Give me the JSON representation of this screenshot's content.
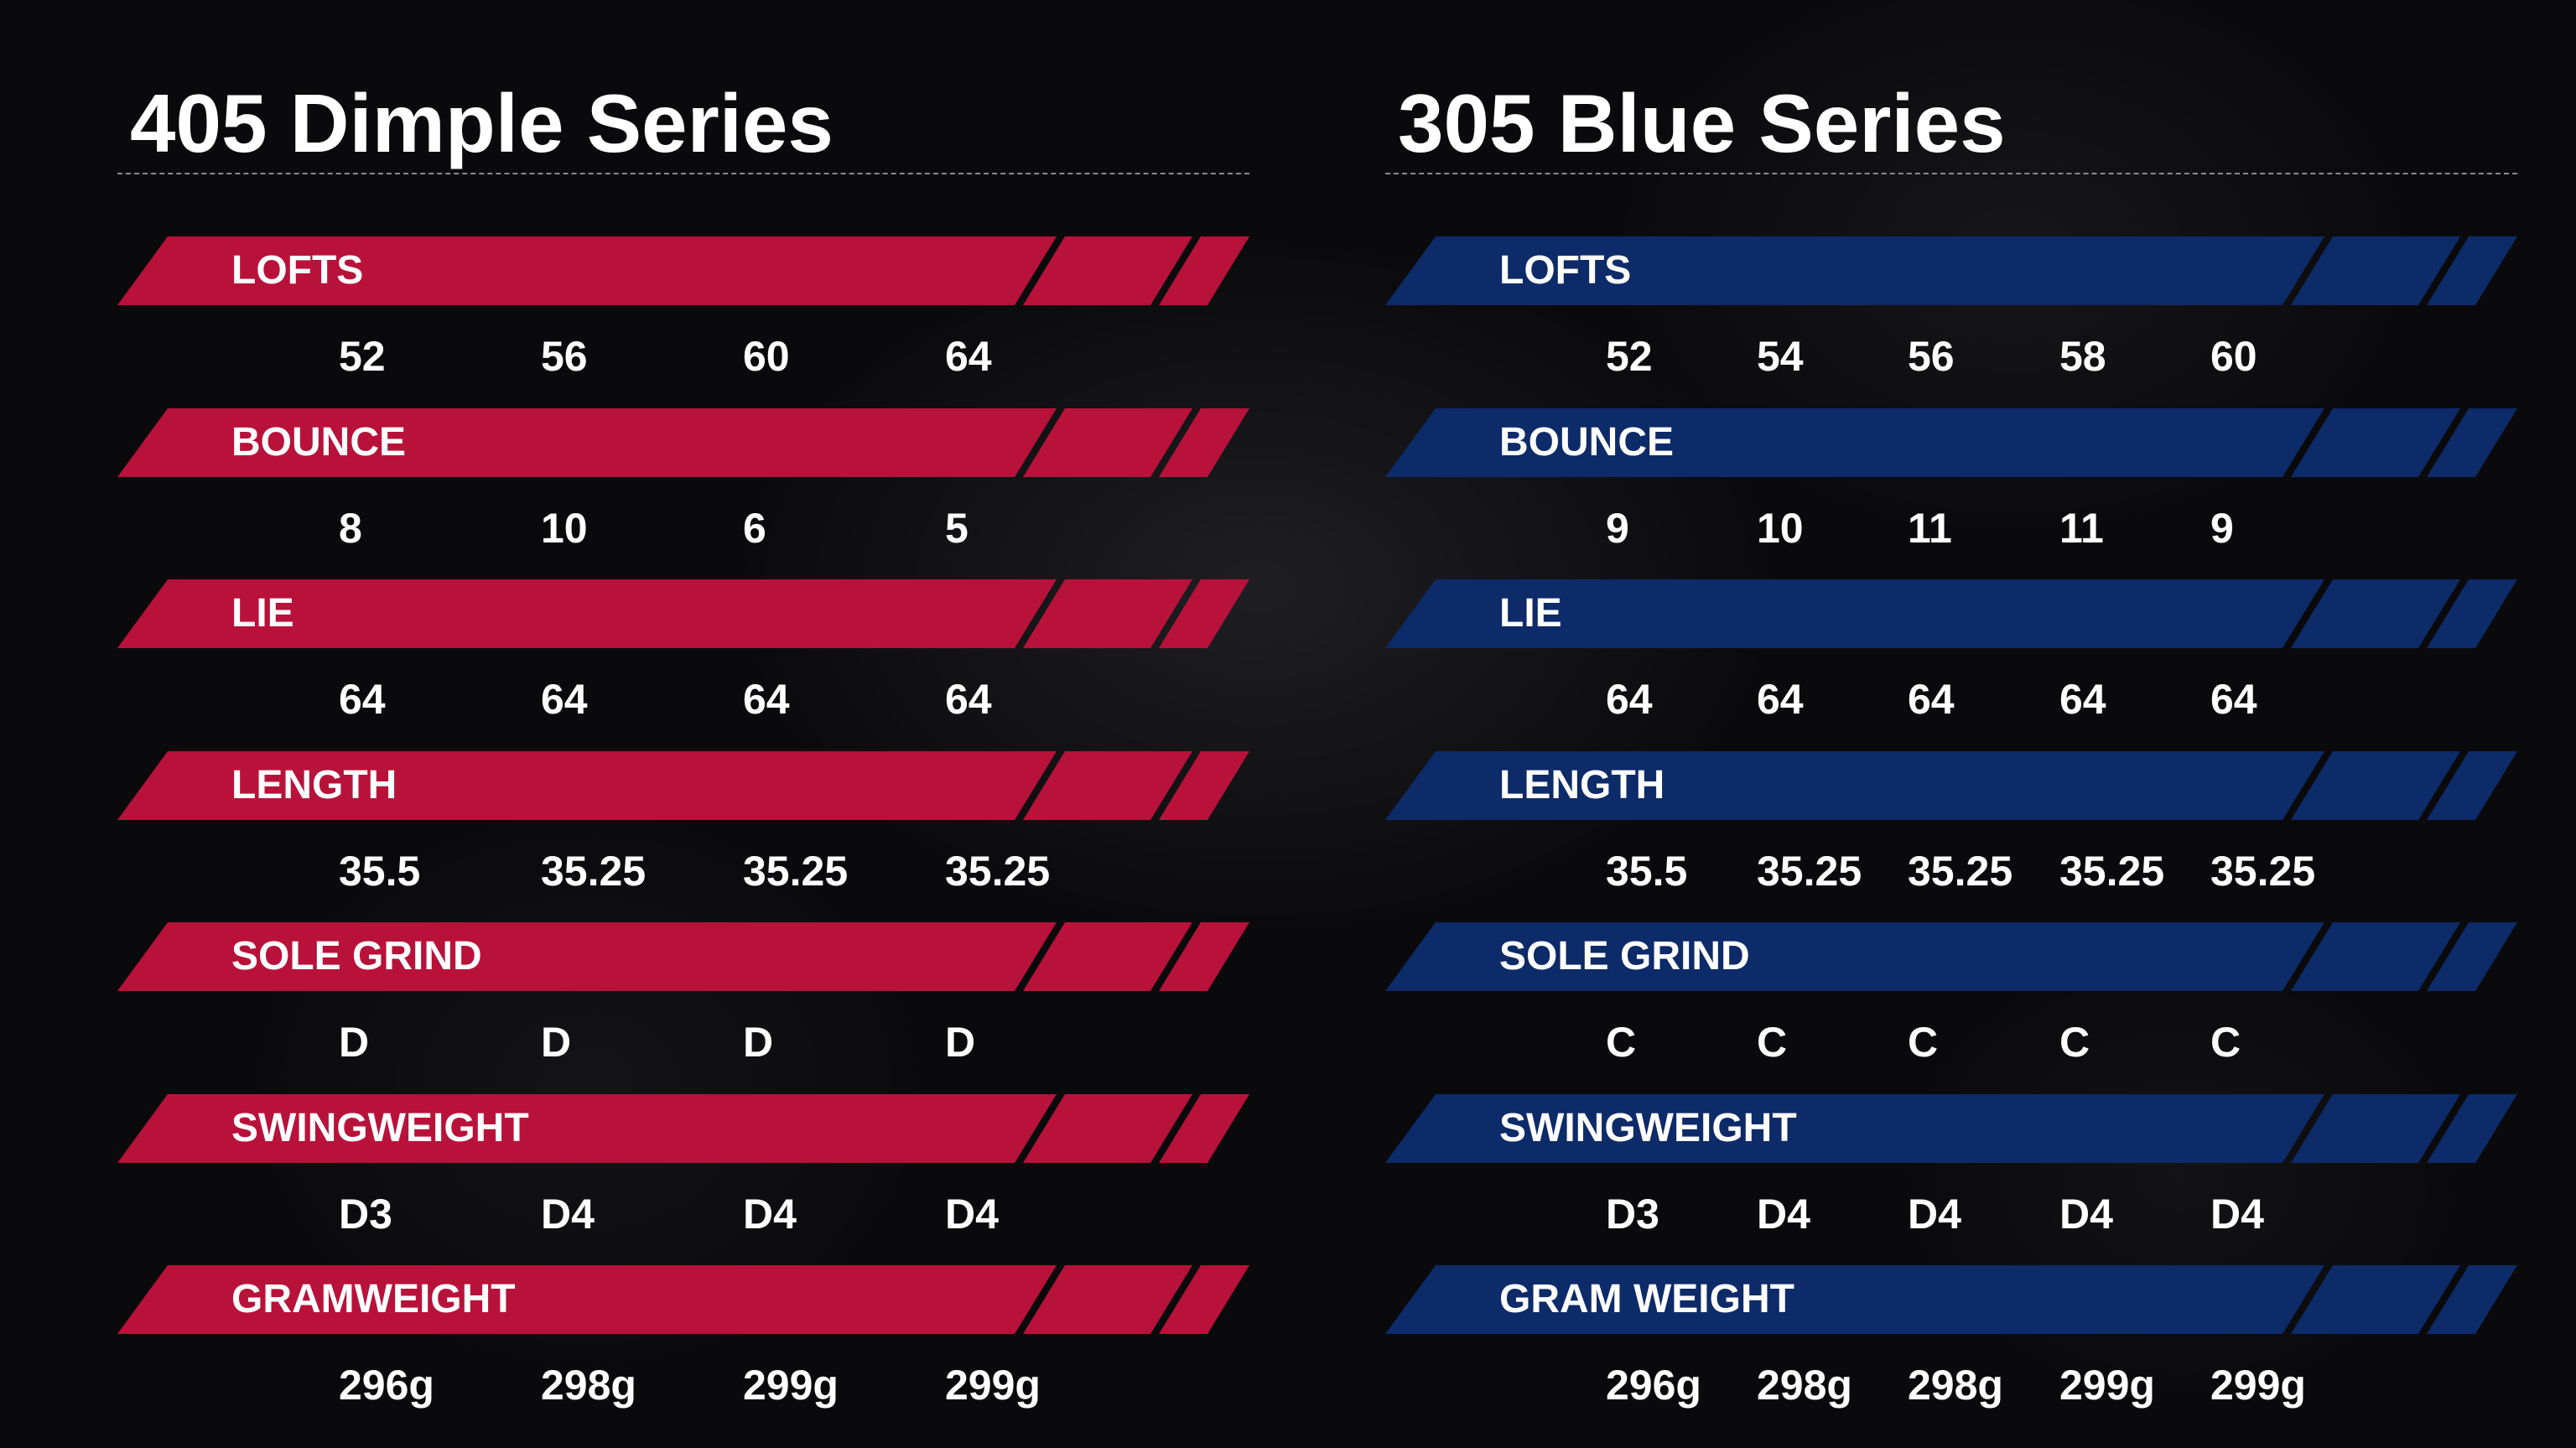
{
  "colors": {
    "dimple_band": "#b8123a",
    "blue_band": "#0d2a69",
    "background": "#0a0a0c",
    "text": "#ffffff"
  },
  "panels": [
    {
      "title": "405 Dimple Series",
      "theme": "red",
      "rows": [
        {
          "label": "LOFTS",
          "values": [
            "52",
            "56",
            "60",
            "64"
          ]
        },
        {
          "label": "BOUNCE",
          "values": [
            "8",
            "10",
            "6",
            "5"
          ]
        },
        {
          "label": "LIE",
          "values": [
            "64",
            "64",
            "64",
            "64"
          ]
        },
        {
          "label": "LENGTH",
          "values": [
            "35.5",
            "35.25",
            "35.25",
            "35.25"
          ]
        },
        {
          "label": "SOLE GRIND",
          "values": [
            "D",
            "D",
            "D",
            "D"
          ]
        },
        {
          "label": "SWINGWEIGHT",
          "values": [
            "D3",
            "D4",
            "D4",
            "D4"
          ]
        },
        {
          "label": "GRAMWEIGHT",
          "values": [
            "296g",
            "298g",
            "299g",
            "299g"
          ]
        }
      ]
    },
    {
      "title": "305 Blue Series",
      "theme": "blue",
      "rows": [
        {
          "label": "LOFTS",
          "values": [
            "52",
            "54",
            "56",
            "58",
            "60"
          ]
        },
        {
          "label": "BOUNCE",
          "values": [
            "9",
            "10",
            "11",
            "11",
            "9"
          ]
        },
        {
          "label": "LIE",
          "values": [
            "64",
            "64",
            "64",
            "64",
            "64"
          ]
        },
        {
          "label": "LENGTH",
          "values": [
            "35.5",
            "35.25",
            "35.25",
            "35.25",
            "35.25"
          ]
        },
        {
          "label": "SOLE GRIND",
          "values": [
            "C",
            "C",
            "C",
            "C",
            "C"
          ]
        },
        {
          "label": "SWINGWEIGHT",
          "values": [
            "D3",
            "D4",
            "D4",
            "D4",
            "D4"
          ]
        },
        {
          "label": "GRAM WEIGHT",
          "values": [
            "296g",
            "298g",
            "298g",
            "299g",
            "299g"
          ]
        }
      ]
    }
  ]
}
